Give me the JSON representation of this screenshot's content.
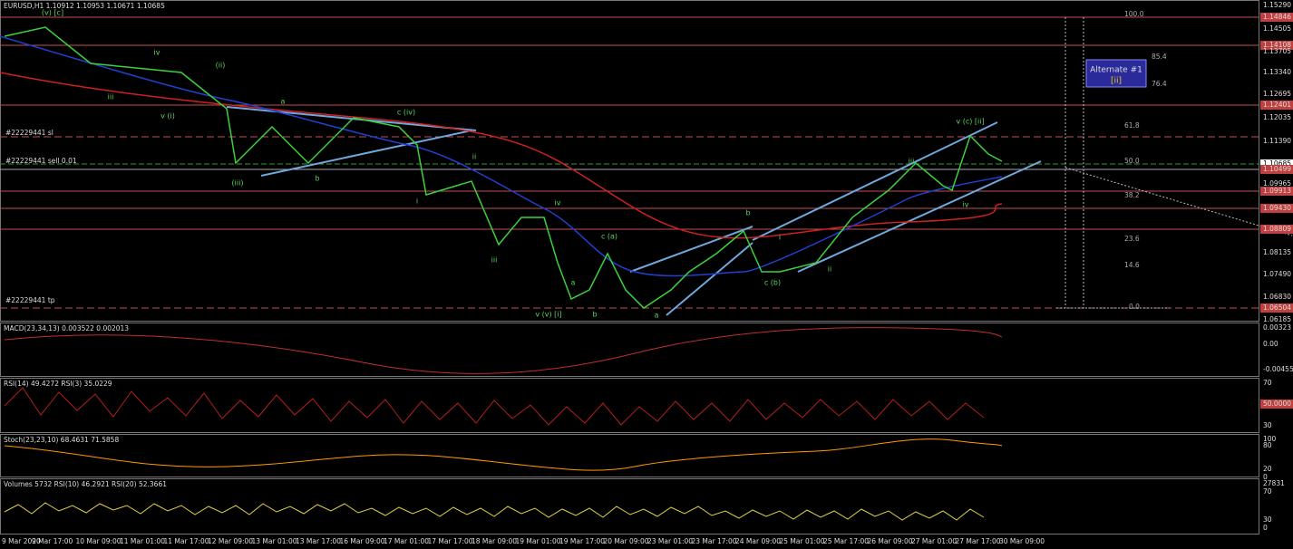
{
  "header": "EURUSD,H1  1.10912 1.10953 1.10671 1.10685",
  "price_axis": [
    "1.15290",
    "1.14846",
    "1.14505",
    "1.14108",
    "1.13705",
    "1.13340",
    "1.12695",
    "1.12401",
    "1.12035",
    "1.11390",
    "1.10685",
    "1.10499",
    "1.09965",
    "1.09913",
    "1.09430",
    "1.08809",
    "1.08135",
    "1.07490",
    "1.06830",
    "1.06504",
    "1.06185"
  ],
  "order_labels": [
    "#22229441 sl",
    "#22229441 sell 0.01",
    "#22229441 tp"
  ],
  "fib_levels": [
    "100.0",
    "85.4",
    "76.4",
    "61.8",
    "50.0",
    "38.2",
    "23.6",
    "14.6",
    "0.0"
  ],
  "alternate_box": {
    "title": "Alternate #1",
    "label": "[ii]"
  },
  "wave_labels": [
    "(v) [c]",
    "iv",
    "(ii)",
    "v (i)",
    "iii",
    "(iii)",
    "a",
    "b",
    "c (iv)",
    "ii",
    "i",
    "iii",
    "iv",
    "v (v) [i]",
    "a",
    "b",
    "c (a)",
    "a",
    "b",
    "i",
    "c (b)",
    "ii",
    "iii",
    "iv",
    "v (c) [ii]"
  ],
  "indicators": [
    {
      "label": "MACD(23,34,13) 0.003522 0.002013",
      "axis": [
        "0.00323",
        "0.00",
        "-0.00455"
      ]
    },
    {
      "label": "RSI(14) 49.4272  RSI(3) 35.0229",
      "axis": [
        "70",
        "50.0000",
        "30"
      ]
    },
    {
      "label": "Stoch(23,23,10) 68.4631 71.5858",
      "axis": [
        "100",
        "80",
        "20",
        "0"
      ]
    },
    {
      "label": "Volumes 5732  RSI(10) 46.2921  RSI(20) 52.3661",
      "axis": [
        "27831",
        "70",
        "30",
        "0"
      ]
    }
  ],
  "time_axis": [
    "9 Mar 2020",
    "9 Mar 17:00",
    "10 Mar 09:00",
    "11 Mar 01:00",
    "11 Mar 17:00",
    "12 Mar 09:00",
    "13 Mar 01:00",
    "13 Mar 17:00",
    "16 Mar 09:00",
    "17 Mar 01:00",
    "17 Mar 17:00",
    "18 Mar 09:00",
    "19 Mar 01:00",
    "19 Mar 17:00",
    "20 Mar 09:00",
    "23 Mar 01:00",
    "23 Mar 17:00",
    "24 Mar 09:00",
    "25 Mar 01:00",
    "25 Mar 17:00",
    "26 Mar 09:00",
    "27 Mar 01:00",
    "27 Mar 17:00",
    "30 Mar 09:00"
  ]
}
